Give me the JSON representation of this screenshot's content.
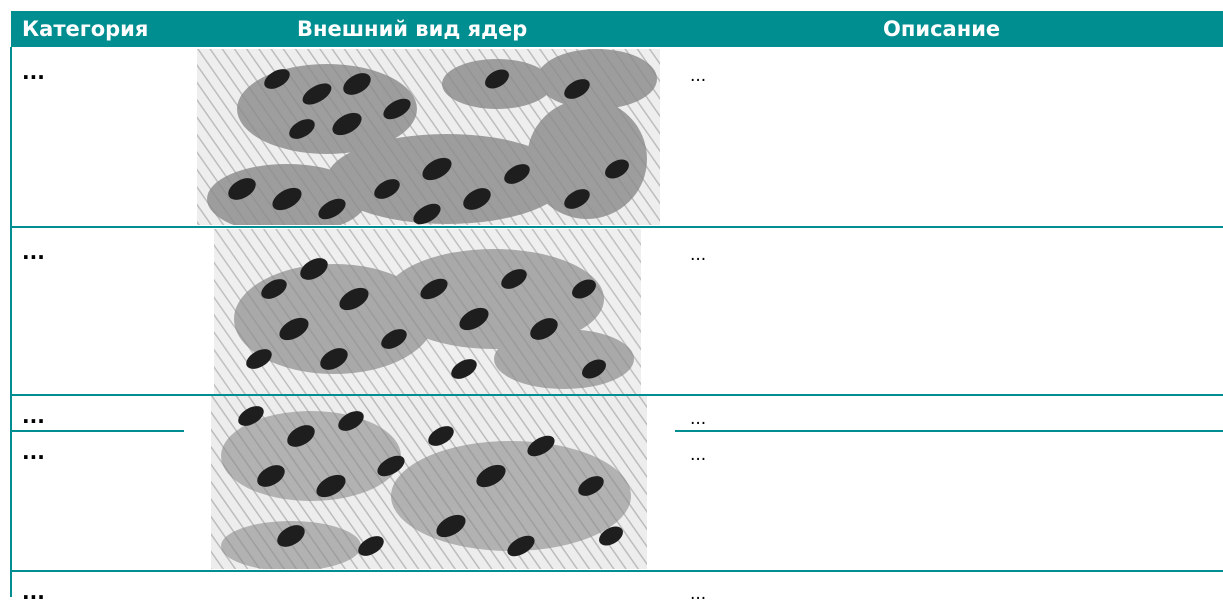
{
  "table": {
    "headers": {
      "category": "Категория",
      "appearance": "Внешний вид ядер",
      "description": "Описание"
    },
    "rows": [
      {
        "category": "...",
        "description": "..."
      },
      {
        "category": "...",
        "description": "..."
      },
      {
        "category": "...",
        "description": "..."
      },
      {
        "category": "...",
        "description": "..."
      },
      {
        "category": "...",
        "description": "..."
      }
    ]
  },
  "colors": {
    "accent": "#008e90",
    "header_text": "#ffffff"
  }
}
